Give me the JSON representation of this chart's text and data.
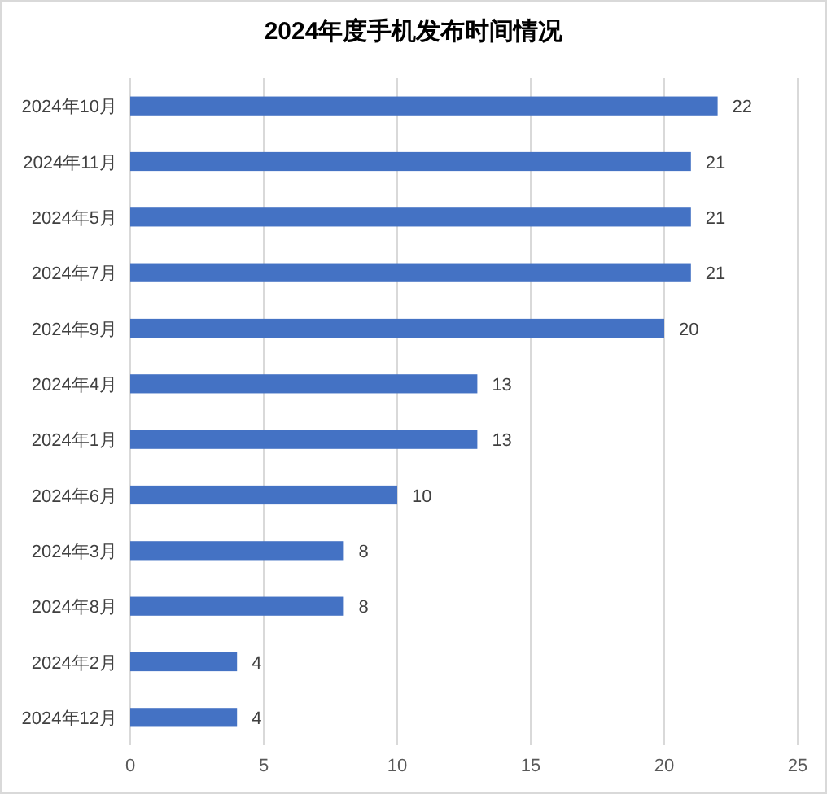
{
  "chart_data": {
    "type": "bar",
    "orientation": "horizontal",
    "title": "2024年度手机发布时间情况",
    "categories": [
      "2024年10月",
      "2024年11月",
      "2024年5月",
      "2024年7月",
      "2024年9月",
      "2024年4月",
      "2024年1月",
      "2024年6月",
      "2024年3月",
      "2024年8月",
      "2024年2月",
      "2024年12月"
    ],
    "series": [
      {
        "color": "#4472c4",
        "values": [
          22,
          21,
          21,
          21,
          20,
          13,
          13,
          10,
          8,
          8,
          4,
          4
        ]
      }
    ],
    "xlim": [
      0,
      25
    ],
    "xticks": [
      0,
      5,
      10,
      15,
      20,
      25
    ],
    "grid": "x",
    "data_labels": true
  }
}
